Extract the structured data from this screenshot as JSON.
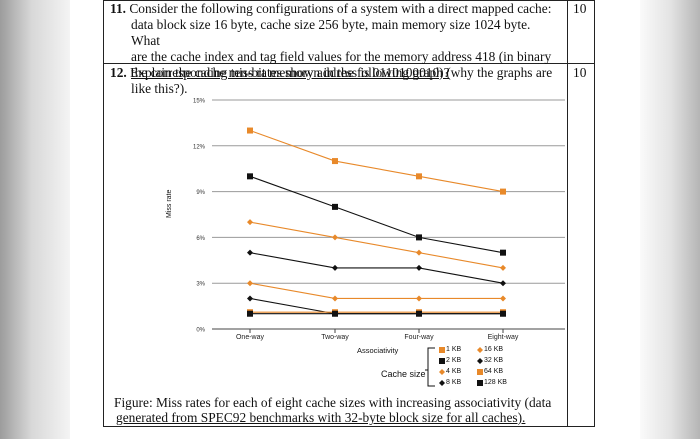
{
  "questions": [
    {
      "number": "11.",
      "lines": [
        "Consider the following configurations of a system with a direct mapped cache:",
        "data block size 16 byte, cache size 256 byte, main memory size 1024 byte. What",
        "are the cache index and tag field values for the memory address 418 (in binary",
        "the corresponding ten-bit memory address is 0110100010)?"
      ],
      "points": "10"
    },
    {
      "number": "12.",
      "lines": [
        "Explain the cache miss rates shown in the following graph (why the graphs are",
        "like this?)."
      ],
      "points": "10"
    }
  ],
  "chart_data": {
    "type": "line",
    "title": "",
    "xlabel": "Associativity",
    "ylabel": "Miss rate",
    "categories": [
      "One-way",
      "Two-way",
      "Four-way",
      "Eight-way"
    ],
    "y_ticks": [
      "0%",
      "3%",
      "6%",
      "9%",
      "12%",
      "15%"
    ],
    "ylim": [
      0,
      15
    ],
    "legend_title": "Cache size",
    "legend": {
      "col1": [
        "1 KB",
        "2 KB",
        "4 KB",
        "8 KB"
      ],
      "col2": [
        "16 KB",
        "32 KB",
        "64 KB",
        "128 KB"
      ]
    },
    "series": [
      {
        "name": "1 KB",
        "values": [
          13.0,
          11.0,
          10.0,
          9.0
        ],
        "color": "#e8892a",
        "marker": "square"
      },
      {
        "name": "2 KB",
        "values": [
          10.0,
          8.0,
          6.0,
          5.0
        ],
        "color": "#111111",
        "marker": "square"
      },
      {
        "name": "4 KB",
        "values": [
          7.0,
          6.0,
          5.0,
          4.0
        ],
        "color": "#e8892a",
        "marker": "diamond"
      },
      {
        "name": "8 KB",
        "values": [
          5.0,
          4.0,
          4.0,
          3.0
        ],
        "color": "#111111",
        "marker": "diamond"
      },
      {
        "name": "16 KB",
        "values": [
          3.0,
          2.0,
          2.0,
          2.0
        ],
        "color": "#e8892a",
        "marker": "diamond"
      },
      {
        "name": "32 KB",
        "values": [
          2.0,
          1.0,
          1.0,
          1.0
        ],
        "color": "#111111",
        "marker": "diamond"
      },
      {
        "name": "64 KB",
        "values": [
          1.1,
          1.1,
          1.1,
          1.1
        ],
        "color": "#e8892a",
        "marker": "square"
      },
      {
        "name": "128 KB",
        "values": [
          1.0,
          1.0,
          1.0,
          1.0
        ],
        "color": "#111111",
        "marker": "square"
      }
    ]
  },
  "caption": {
    "line1": "Figure: Miss rates for each of eight cache sizes with increasing associativity (data",
    "line2": "generated from SPEC92 benchmarks with 32-byte block size for all caches)."
  }
}
